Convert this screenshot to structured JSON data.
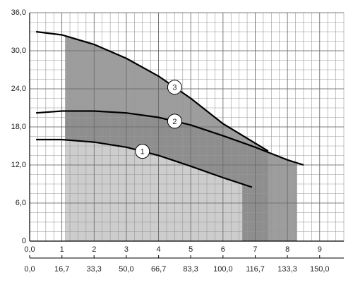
{
  "chart_data": {
    "type": "line",
    "xlim": [
      0,
      9.75
    ],
    "xticks": [
      {
        "value": 0,
        "label": "0,0"
      },
      1,
      2,
      3,
      4,
      5,
      6,
      7,
      8,
      9
    ],
    "x2lim": [
      0,
      162.5
    ],
    "x2ticks": [
      {
        "value": 0,
        "label": "0,0"
      },
      {
        "value": 16.7,
        "label": "16,7"
      },
      {
        "value": 33.3,
        "label": "33,3"
      },
      {
        "value": 50,
        "label": "50,0"
      },
      {
        "value": 66.7,
        "label": "66,7"
      },
      {
        "value": 83.3,
        "label": "83,3"
      },
      {
        "value": 100,
        "label": "100,0"
      },
      {
        "value": 116.7,
        "label": "116,7"
      },
      {
        "value": 133.3,
        "label": "133,3"
      },
      {
        "value": 150,
        "label": "150,0"
      }
    ],
    "ylim": [
      0,
      36
    ],
    "yticks": [
      0,
      {
        "value": 6,
        "label": "6,0"
      },
      {
        "value": 12,
        "label": "12,0"
      },
      {
        "value": 18,
        "label": "18,0"
      },
      {
        "value": 24,
        "label": "24,0"
      },
      {
        "value": 30,
        "label": "30,0"
      },
      {
        "value": 36,
        "label": "36,0"
      }
    ],
    "grid": true,
    "series": [
      {
        "name": "1",
        "color": "#000000",
        "x": [
          0.2,
          1,
          2,
          3,
          4,
          5,
          6,
          6.9
        ],
        "values": [
          16,
          16,
          15.6,
          14.8,
          13.5,
          11.8,
          10,
          8.5
        ]
      },
      {
        "name": "2",
        "color": "#000000",
        "x": [
          0.2,
          1,
          2,
          3,
          4,
          5,
          6,
          7,
          8,
          8.5
        ],
        "values": [
          20.2,
          20.5,
          20.5,
          20.2,
          19.5,
          18.3,
          16.6,
          14.8,
          12.8,
          12
        ]
      },
      {
        "name": "3",
        "color": "#000000",
        "x": [
          0.2,
          1,
          2,
          3,
          4,
          5,
          6,
          7.4
        ],
        "values": [
          33,
          32.5,
          31,
          28.8,
          26,
          22.5,
          18.5,
          14.2
        ]
      }
    ]
  }
}
